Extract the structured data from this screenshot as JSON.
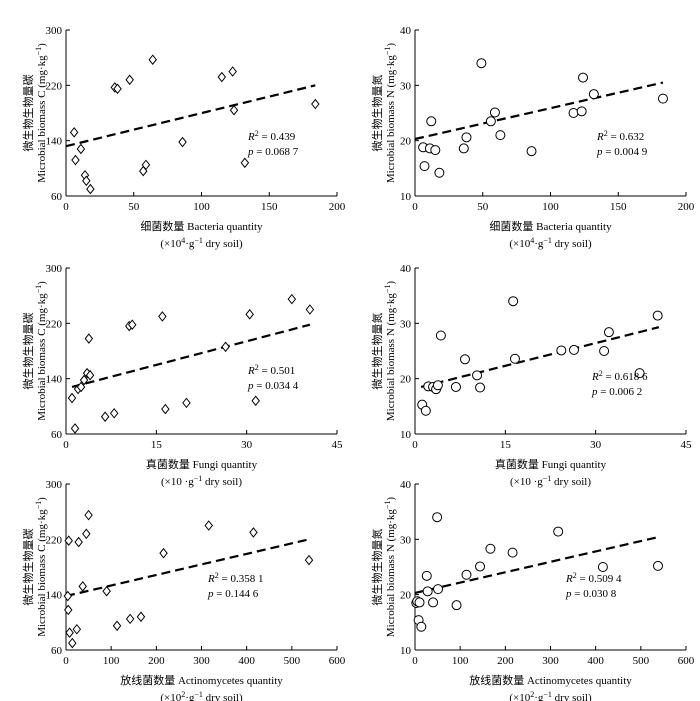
{
  "chart_data": [
    {
      "type": "scatter",
      "marker": "diamond",
      "ylabel": {
        "zh": "微生物生物量碳",
        "en": "Microbial biomass C",
        "unit": "(mg·kg",
        "unit_sup": "−1",
        "unit_end": ")"
      },
      "xlabel": {
        "line1": "细菌数量 Bacteria quantity",
        "line2_pre": "(×10",
        "line2_sup": "4",
        "line2_post": "·g",
        "line2_sup2": "−1",
        "line2_end": " dry soil)"
      },
      "xlim": [
        0,
        200
      ],
      "ylim": [
        60,
        300
      ],
      "xticks": [
        0,
        50,
        100,
        150,
        200
      ],
      "yticks": [
        60,
        140,
        220,
        300
      ],
      "xtick_labels": [
        "0",
        "50",
        "100",
        "150",
        "200"
      ],
      "ytick_labels": [
        "60",
        "140",
        "220",
        "300"
      ],
      "x": [
        6,
        7,
        11,
        14,
        15,
        18,
        36,
        38,
        47,
        57,
        59,
        64,
        86,
        115,
        123,
        124,
        132,
        184
      ],
      "y": [
        152,
        112,
        128,
        90,
        82,
        70,
        217,
        215,
        228,
        96,
        105,
        257,
        138,
        232,
        240,
        184,
        108,
        193
      ],
      "fit": {
        "x": [
          0,
          184
        ],
        "y": [
          132,
          220
        ]
      },
      "r2_label": "R",
      "r2_exp": "2",
      "r2_value": " = 0.439",
      "p_label": "p",
      "p_value": " = 0.068 7"
    },
    {
      "type": "scatter",
      "marker": "circle",
      "ylabel": {
        "zh": "微生物生物量氮",
        "en": "Microbial biomass N",
        "unit": "(mg·kg",
        "unit_sup": "−1",
        "unit_end": ")"
      },
      "xlabel": {
        "line1": "细菌数量 Bacteria quantity",
        "line2_pre": "(×10",
        "line2_sup": "4",
        "line2_post": "·g",
        "line2_sup2": "−1",
        "line2_end": " dry soil)"
      },
      "xlim": [
        0,
        200
      ],
      "ylim": [
        10,
        40
      ],
      "xticks": [
        0,
        50,
        100,
        150,
        200
      ],
      "yticks": [
        10,
        20,
        30,
        40
      ],
      "xtick_labels": [
        "0",
        "50",
        "100",
        "150",
        "200"
      ],
      "ytick_labels": [
        "10",
        "20",
        "30",
        "40"
      ],
      "x": [
        6,
        7,
        11,
        12,
        15,
        18,
        36,
        38,
        49,
        56,
        59,
        63,
        86,
        117,
        123,
        124,
        132,
        183
      ],
      "y": [
        18.8,
        15.4,
        18.6,
        23.5,
        18.3,
        14.2,
        18.6,
        20.6,
        34,
        23.5,
        25.1,
        21,
        18.1,
        25,
        25.3,
        31.4,
        28.4,
        27.6
      ],
      "fit": {
        "x": [
          0,
          183
        ],
        "y": [
          20.3,
          30.5
        ]
      },
      "r2_label": "R",
      "r2_exp": "2",
      "r2_value": " = 0.632",
      "p_label": "p",
      "p_value": " = 0.004 9"
    },
    {
      "type": "scatter",
      "marker": "diamond",
      "ylabel": {
        "zh": "微生物生物量碳",
        "en": "Microbial biomass C",
        "unit": "(mg·kg",
        "unit_sup": "−1",
        "unit_end": ")"
      },
      "xlabel": {
        "line1": "真菌数量 Fungi quantity",
        "line2_pre": "(×10 ·g",
        "line2_sup": "−1",
        "line2_post": " dry soil)",
        "line2_sup2": "",
        "line2_end": ""
      },
      "xlim": [
        0,
        45
      ],
      "ylim": [
        60,
        300
      ],
      "xticks": [
        0,
        15,
        30,
        45
      ],
      "yticks": [
        60,
        140,
        220,
        300
      ],
      "xtick_labels": [
        "0",
        "15",
        "30",
        "45"
      ],
      "ytick_labels": [
        "60",
        "140",
        "220",
        "300"
      ],
      "x": [
        1,
        1.5,
        2,
        2.5,
        3,
        3.5,
        3.8,
        4,
        6.5,
        8,
        10.5,
        11,
        16,
        16.5,
        20,
        26.5,
        30.5,
        31.5,
        37.5,
        40.5
      ],
      "y": [
        112,
        68,
        125,
        128,
        138,
        148,
        198,
        145,
        85,
        90,
        216,
        218,
        230,
        96,
        105,
        186,
        233,
        108,
        255,
        240
      ],
      "fit": {
        "x": [
          1,
          40.5
        ],
        "y": [
          128,
          218
        ]
      },
      "r2_label": "R",
      "r2_exp": "2",
      "r2_value": " = 0.501",
      "p_label": "p",
      "p_value": " = 0.034 4"
    },
    {
      "type": "scatter",
      "marker": "circle",
      "ylabel": {
        "zh": "微生物生物量氮",
        "en": "Microbial biomass N",
        "unit": "(mg·kg",
        "unit_sup": "−1",
        "unit_end": ")"
      },
      "xlabel": {
        "line1": "真菌数量 Fungi quantity",
        "line2_pre": "(×10 ·g",
        "line2_sup": "−1",
        "line2_post": " dry soil)",
        "line2_sup2": "",
        "line2_end": ""
      },
      "xlim": [
        0,
        45
      ],
      "ylim": [
        10,
        40
      ],
      "xticks": [
        0,
        15,
        30,
        45
      ],
      "yticks": [
        10,
        20,
        30,
        40
      ],
      "xtick_labels": [
        "0",
        "15",
        "30",
        "45"
      ],
      "ytick_labels": [
        "10",
        "20",
        "30",
        "40"
      ],
      "x": [
        1.2,
        1.8,
        2.2,
        3,
        3.5,
        3.8,
        4.3,
        6.8,
        8.3,
        10.3,
        10.8,
        16.3,
        16.6,
        24.3,
        26.4,
        31.4,
        32.2,
        37.3,
        40.3
      ],
      "y": [
        15.3,
        14.2,
        18.6,
        18.5,
        18.1,
        18.8,
        27.8,
        18.5,
        23.5,
        20.6,
        18.4,
        34,
        23.6,
        25.1,
        25.2,
        25,
        28.4,
        21,
        31.4
      ],
      "fit": {
        "x": [
          1,
          40.5
        ],
        "y": [
          18.5,
          29.3
        ]
      },
      "r2_label": "R",
      "r2_exp": "2",
      "r2_value": " = 0.618 6",
      "p_label": "p",
      "p_value": " = 0.006 2"
    },
    {
      "type": "scatter",
      "marker": "diamond",
      "ylabel": {
        "zh": "微生物生物量碳",
        "en": "Microbial biomass C",
        "unit": "(mg·kg",
        "unit_sup": "−1",
        "unit_end": ")"
      },
      "xlabel": {
        "line1": "放线菌数量 Actinomycetes quantity",
        "line2_pre": "(×10",
        "line2_sup": "2",
        "line2_post": "·g",
        "line2_sup2": "−1",
        "line2_end": " dry soil)"
      },
      "xlim": [
        0,
        600
      ],
      "ylim": [
        60,
        300
      ],
      "xticks": [
        0,
        100,
        200,
        300,
        400,
        500,
        600
      ],
      "yticks": [
        60,
        140,
        220,
        300
      ],
      "xtick_labels": [
        "0",
        "100",
        "200",
        "300",
        "400",
        "500",
        "600"
      ],
      "ytick_labels": [
        "60",
        "140",
        "220",
        "300"
      ],
      "x": [
        4,
        5,
        6,
        8,
        14,
        24,
        28,
        37,
        45,
        50,
        90,
        113,
        142,
        166,
        216,
        316,
        415,
        538
      ],
      "y": [
        138,
        118,
        218,
        85,
        70,
        90,
        216,
        152,
        228,
        255,
        145,
        95,
        105,
        108,
        200,
        240,
        230,
        190
      ],
      "fit": {
        "x": [
          0,
          538
        ],
        "y": [
          138,
          220
        ]
      },
      "r2_label": "R",
      "r2_exp": "2",
      "r2_value": " = 0.358 1",
      "p_label": "p",
      "p_value": " = 0.144 6"
    },
    {
      "type": "scatter",
      "marker": "circle",
      "ylabel": {
        "zh": "微生物生物量氮",
        "en": "Microbial biomass N",
        "unit": "(mg·kg",
        "unit_sup": "−1",
        "unit_end": ")"
      },
      "xlabel": {
        "line1": "放线菌数量 Actinomycetes quantity",
        "line2_pre": "(×10",
        "line2_sup": "2",
        "line2_post": "·g",
        "line2_sup2": "−1",
        "line2_end": " dry soil)"
      },
      "xlim": [
        0,
        600
      ],
      "ylim": [
        10,
        40
      ],
      "xticks": [
        0,
        100,
        200,
        300,
        400,
        500,
        600
      ],
      "yticks": [
        10,
        20,
        30,
        40
      ],
      "xtick_labels": [
        "0",
        "100",
        "200",
        "300",
        "400",
        "500",
        "600"
      ],
      "ytick_labels": [
        "10",
        "20",
        "30",
        "40"
      ],
      "x": [
        3,
        5,
        8,
        10,
        14,
        26,
        28,
        40,
        49,
        51,
        92,
        114,
        144,
        167,
        216,
        317,
        416,
        538
      ],
      "y": [
        18.5,
        18.8,
        15.4,
        18.6,
        14.2,
        23.4,
        20.6,
        18.6,
        34,
        21,
        18.1,
        23.6,
        25.1,
        28.3,
        27.6,
        31.4,
        25,
        25.2
      ],
      "fit": {
        "x": [
          0,
          538
        ],
        "y": [
          20.3,
          30.4
        ]
      },
      "r2_label": "R",
      "r2_exp": "2",
      "r2_value": " = 0.509 4",
      "p_label": "p",
      "p_value": " = 0.030 8"
    }
  ]
}
